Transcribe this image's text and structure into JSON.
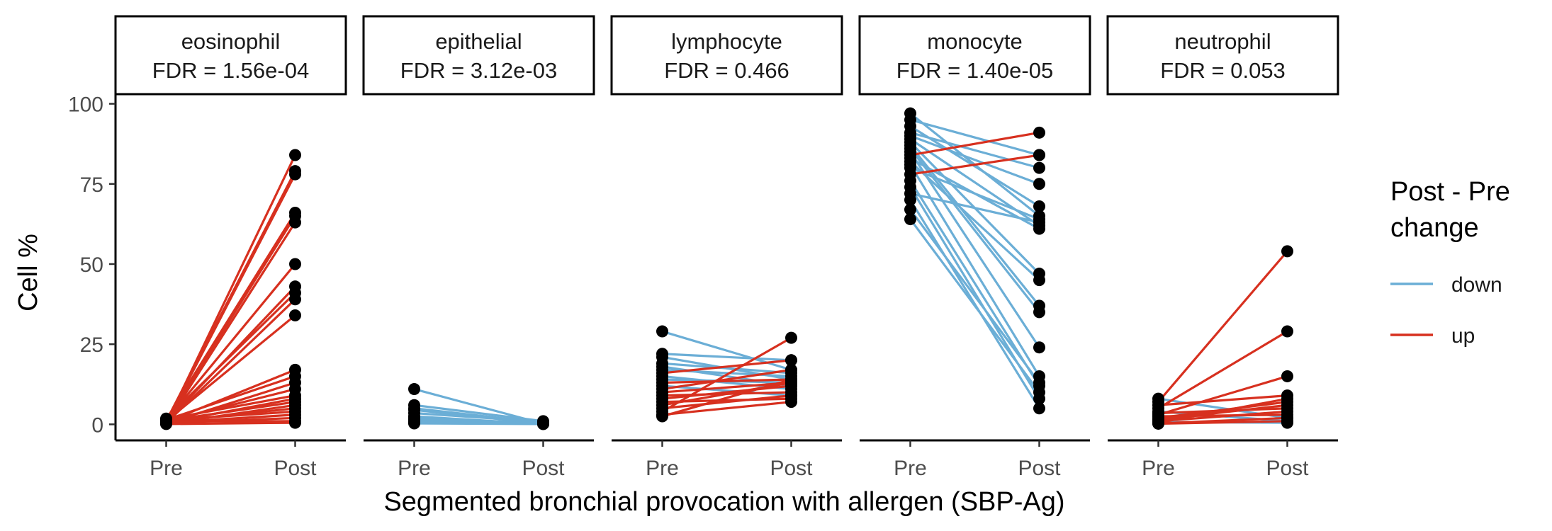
{
  "chart_data": {
    "type": "line",
    "title": "",
    "xlabel": "Segmented bronchial provocation with allergen (SBP-Ag)",
    "ylabel": "Cell %",
    "ylim": [
      -5,
      103
    ],
    "yticks": [
      0,
      25,
      50,
      75,
      100
    ],
    "x_categories": [
      "Pre",
      "Post"
    ],
    "grid": false,
    "legend": {
      "title_line1": "Post - Pre",
      "title_line2": "change",
      "placement": "right",
      "entries": [
        {
          "label": "down",
          "color": "#6baed6"
        },
        {
          "label": "up",
          "color": "#d7301f"
        }
      ]
    },
    "point_color": "#000000",
    "facets": [
      {
        "cell": "eosinophil",
        "fdr": "FDR = 1.56e-04",
        "pairs": [
          [
            0.3,
            84
          ],
          [
            1.0,
            79
          ],
          [
            0.5,
            78
          ],
          [
            1.5,
            66
          ],
          [
            0.8,
            65
          ],
          [
            0.2,
            63
          ],
          [
            1.2,
            50
          ],
          [
            0.6,
            43
          ],
          [
            1.8,
            41
          ],
          [
            0.4,
            39
          ],
          [
            1.0,
            34
          ],
          [
            0.7,
            17
          ],
          [
            1.4,
            15
          ],
          [
            0.3,
            13
          ],
          [
            0.9,
            11
          ],
          [
            1.6,
            9
          ],
          [
            0.5,
            8
          ],
          [
            1.1,
            7
          ],
          [
            0.2,
            6
          ],
          [
            0.8,
            5
          ],
          [
            1.3,
            4
          ],
          [
            0.6,
            3
          ],
          [
            0.4,
            2
          ],
          [
            0.9,
            1
          ],
          [
            0.1,
            0.5
          ]
        ]
      },
      {
        "cell": "epithelial",
        "fdr": "FDR = 3.12e-03",
        "pairs": [
          [
            11,
            0.2
          ],
          [
            6,
            1.0
          ],
          [
            5,
            0.5
          ],
          [
            4.5,
            0.2
          ],
          [
            3.5,
            0.8
          ],
          [
            2.5,
            0.1
          ],
          [
            2,
            0.3
          ],
          [
            1.5,
            0.6
          ],
          [
            1,
            0.2
          ],
          [
            0.5,
            0.4
          ],
          [
            0.3,
            0.1
          ]
        ]
      },
      {
        "cell": "lymphocyte",
        "fdr": "FDR = 0.466",
        "pairs": [
          [
            29,
            17
          ],
          [
            22,
            20
          ],
          [
            21,
            14
          ],
          [
            19,
            16
          ],
          [
            18,
            12
          ],
          [
            17,
            15
          ],
          [
            16,
            20
          ],
          [
            15,
            11
          ],
          [
            14,
            13
          ],
          [
            13,
            14
          ],
          [
            12,
            9
          ],
          [
            11,
            17
          ],
          [
            10,
            13
          ],
          [
            9,
            10
          ],
          [
            8,
            12
          ],
          [
            7,
            8
          ],
          [
            6,
            13
          ],
          [
            5,
            9
          ],
          [
            4,
            27
          ],
          [
            3,
            7
          ],
          [
            2.5,
            14
          ]
        ]
      },
      {
        "cell": "monocyte",
        "fdr": "FDR = 1.40e-05",
        "pairs": [
          [
            97,
            65
          ],
          [
            95,
            84
          ],
          [
            93,
            68
          ],
          [
            91,
            80
          ],
          [
            90,
            75
          ],
          [
            89,
            62
          ],
          [
            88,
            47
          ],
          [
            87,
            37
          ],
          [
            86,
            35
          ],
          [
            85,
            24
          ],
          [
            84,
            91
          ],
          [
            83,
            61
          ],
          [
            82,
            45
          ],
          [
            81,
            15
          ],
          [
            80,
            64
          ],
          [
            78,
            84
          ],
          [
            76,
            12
          ],
          [
            74,
            8
          ],
          [
            72,
            63
          ],
          [
            70,
            5
          ],
          [
            67,
            13
          ],
          [
            64,
            10
          ]
        ]
      },
      {
        "cell": "neutrophil",
        "fdr": "FDR = 0.053",
        "pairs": [
          [
            8,
            2
          ],
          [
            7,
            54
          ],
          [
            6,
            9
          ],
          [
            5,
            29
          ],
          [
            4,
            1
          ],
          [
            3.5,
            5
          ],
          [
            3,
            15
          ],
          [
            2.5,
            3
          ],
          [
            2,
            7
          ],
          [
            1.5,
            6
          ],
          [
            1,
            4
          ],
          [
            0.7,
            0.5
          ],
          [
            0.5,
            8
          ],
          [
            0.3,
            2
          ],
          [
            0.2,
            1
          ]
        ]
      }
    ]
  }
}
